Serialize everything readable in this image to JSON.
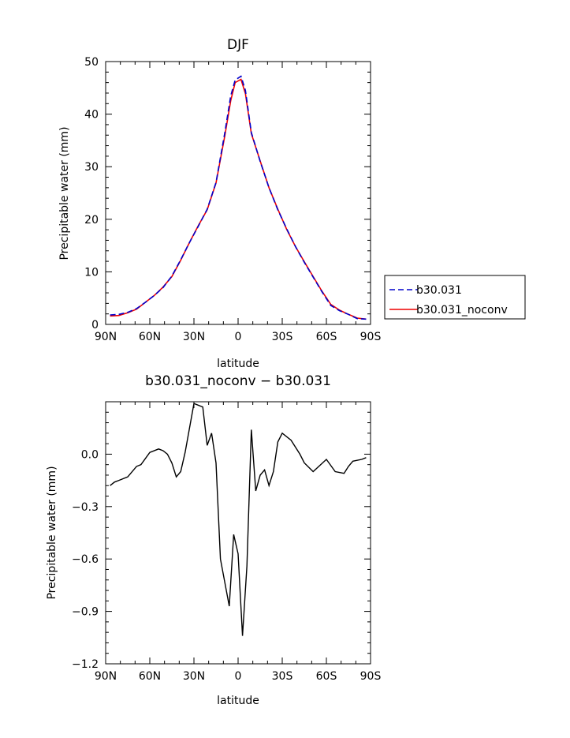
{
  "chart_data": [
    {
      "type": "line",
      "title": "DJF",
      "xlabel": "latitude",
      "ylabel": "Precipitable water (mm)",
      "x_ticks": [
        "90N",
        "60N",
        "30N",
        "0",
        "30S",
        "60S",
        "90S"
      ],
      "y_ticks": [
        "0",
        "10",
        "20",
        "30",
        "40",
        "50"
      ],
      "xlim": [
        90,
        -90
      ],
      "ylim": [
        0,
        50
      ],
      "legend_position": "right",
      "x": [
        87,
        81,
        75,
        69,
        63,
        57,
        51,
        45,
        39,
        33,
        27,
        21,
        15,
        9,
        5,
        2,
        -2,
        -5,
        -9,
        -15,
        -21,
        -27,
        -33,
        -39,
        -45,
        -51,
        -57,
        -63,
        -69,
        -75,
        -81,
        -87
      ],
      "series": [
        {
          "name": "b30.031",
          "color": "#0000cc",
          "style": "dashed",
          "values": [
            1.8,
            1.9,
            2.3,
            3.0,
            4.2,
            5.5,
            7.0,
            9.2,
            12.3,
            15.6,
            18.7,
            21.9,
            27.0,
            36.5,
            43.5,
            46.5,
            47.2,
            44.5,
            36.5,
            31.0,
            26.0,
            21.8,
            18.2,
            14.8,
            11.8,
            9.0,
            6.2,
            3.6,
            2.6,
            1.9,
            1.1,
            1.0
          ]
        },
        {
          "name": "b30.031_noconv",
          "color": "#ee0000",
          "style": "solid",
          "values": [
            1.6,
            1.7,
            2.2,
            2.9,
            4.2,
            5.5,
            7.1,
            9.1,
            12.2,
            15.6,
            18.8,
            21.8,
            26.9,
            35.9,
            42.6,
            46.0,
            46.6,
            43.9,
            36.3,
            31.1,
            26.0,
            21.9,
            18.1,
            14.8,
            11.9,
            9.1,
            6.3,
            3.8,
            2.7,
            1.9,
            1.2,
            1.0
          ]
        }
      ]
    },
    {
      "type": "line",
      "title": "b30.031_noconv − b30.031",
      "xlabel": "latitude",
      "ylabel": "Precipitable water (mm)",
      "x_ticks": [
        "90N",
        "60N",
        "30N",
        "0",
        "30S",
        "60S",
        "90S"
      ],
      "y_ticks": [
        "−1.2",
        "−0.9",
        "−0.6",
        "−0.3",
        "0.0"
      ],
      "xlim": [
        90,
        -90
      ],
      "ylim": [
        -1.2,
        0.3
      ],
      "x": [
        87,
        84,
        81,
        75,
        69,
        66,
        60,
        54,
        51,
        48,
        45,
        42,
        39,
        36,
        30,
        24,
        21,
        18,
        15,
        12,
        6,
        3,
        0,
        -3,
        -6,
        -9,
        -12,
        -15,
        -18,
        -21,
        -24,
        -27,
        -30,
        -36,
        -42,
        -45,
        -51,
        -60,
        -66,
        -72,
        -75,
        -78,
        -84,
        -87
      ],
      "values": [
        -0.18,
        -0.16,
        -0.15,
        -0.13,
        -0.07,
        -0.06,
        0.01,
        0.03,
        0.02,
        0.0,
        -0.05,
        -0.13,
        -0.1,
        0.01,
        0.29,
        0.27,
        0.05,
        0.12,
        -0.05,
        -0.6,
        -0.87,
        -0.46,
        -0.57,
        -1.04,
        -0.64,
        0.14,
        -0.21,
        -0.12,
        -0.09,
        -0.18,
        -0.1,
        0.07,
        0.12,
        0.08,
        0.0,
        -0.05,
        -0.1,
        -0.03,
        -0.1,
        -0.11,
        -0.07,
        -0.04,
        -0.03,
        -0.02
      ]
    }
  ]
}
